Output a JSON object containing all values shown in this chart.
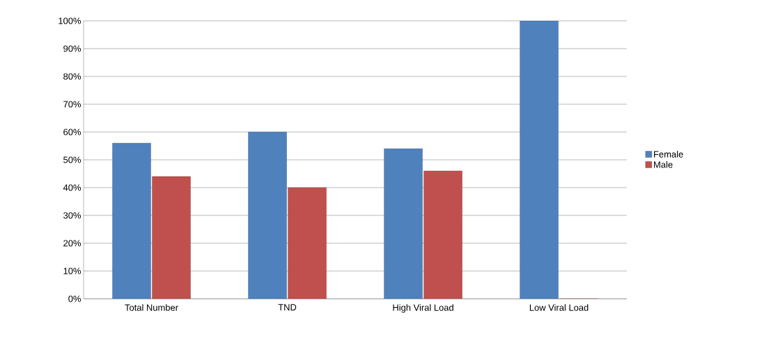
{
  "chart_data": {
    "type": "bar",
    "categories": [
      "Total Number",
      "TND",
      "High Viral Load",
      "Low Viral Load"
    ],
    "series": [
      {
        "name": "Female",
        "color": "#4f81bd",
        "values": [
          56,
          60,
          54,
          100
        ]
      },
      {
        "name": "Male",
        "color": "#c0504d",
        "values": [
          44,
          40,
          46,
          0
        ]
      }
    ],
    "ylim": [
      0,
      100
    ],
    "yticks": [
      {
        "value": 0,
        "label": "0%"
      },
      {
        "value": 10,
        "label": "10%"
      },
      {
        "value": 20,
        "label": "20%"
      },
      {
        "value": 30,
        "label": "30%"
      },
      {
        "value": 40,
        "label": "40%"
      },
      {
        "value": 50,
        "label": "50%"
      },
      {
        "value": 60,
        "label": "60%"
      },
      {
        "value": 70,
        "label": "70%"
      },
      {
        "value": 80,
        "label": "80%"
      },
      {
        "value": 90,
        "label": "90%"
      },
      {
        "value": 100,
        "label": "100%"
      }
    ],
    "grid": "y",
    "legend": "right"
  }
}
